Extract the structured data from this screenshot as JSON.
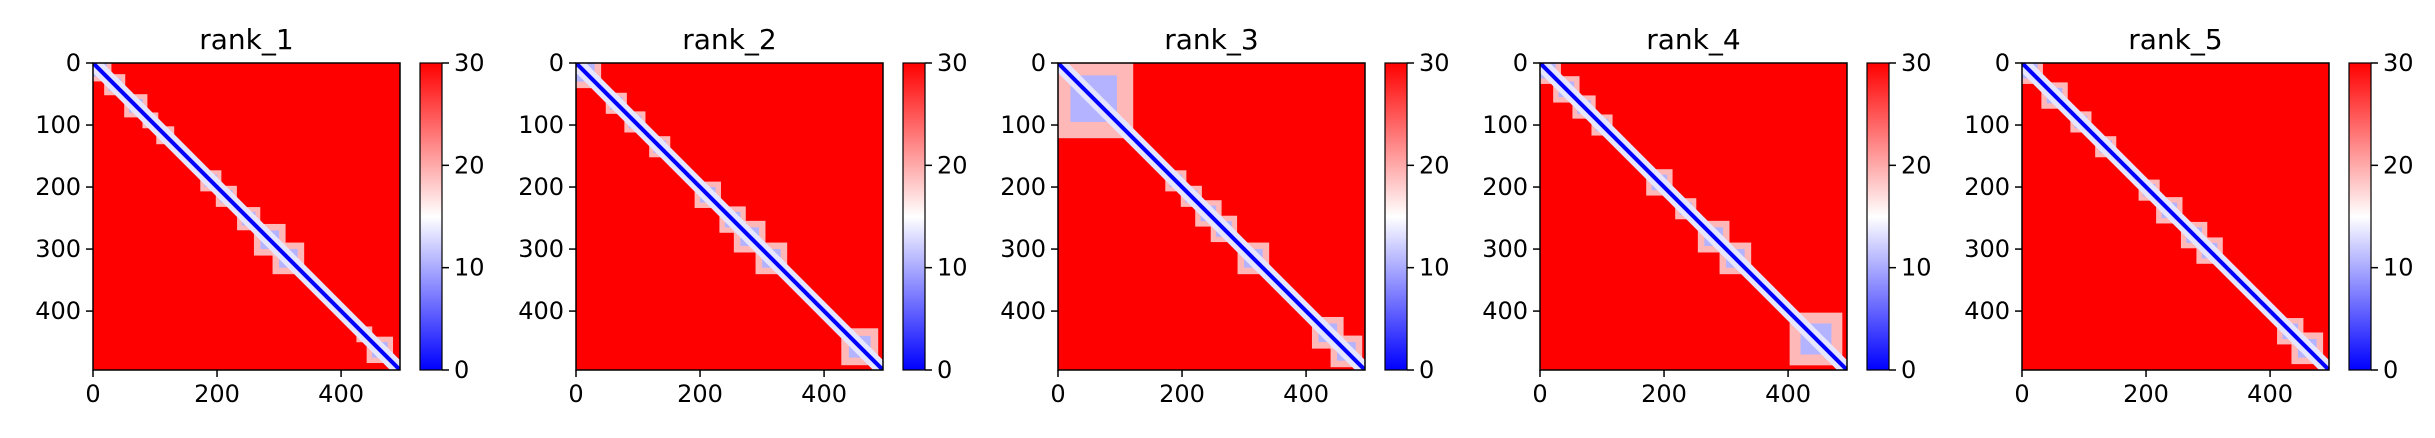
{
  "figure": {
    "colormap": {
      "name": "bwr",
      "low": "#0000ff",
      "mid": "#ffffff",
      "high": "#ff0000"
    }
  },
  "chart_data": [
    {
      "type": "heatmap",
      "title": "rank_1",
      "xlabel": "",
      "ylabel": "",
      "xlim": [
        0,
        495
      ],
      "ylim": [
        495,
        0
      ],
      "xticks": [
        0,
        200,
        400
      ],
      "yticks": [
        0,
        100,
        200,
        300,
        400
      ],
      "colorbar": {
        "range": [
          0,
          30
        ],
        "ticks": [
          0,
          10,
          20,
          30
        ]
      },
      "blue_diagonal": true,
      "low_value_domains": [
        [
          0,
          22
        ],
        [
          25,
          45
        ],
        [
          58,
          80
        ],
        [
          85,
          100
        ],
        [
          108,
          125
        ],
        [
          180,
          200
        ],
        [
          205,
          225
        ],
        [
          240,
          262
        ],
        [
          270,
          300
        ],
        [
          300,
          330
        ],
        [
          430,
          445
        ],
        [
          450,
          475
        ]
      ]
    },
    {
      "type": "heatmap",
      "title": "rank_2",
      "xlabel": "",
      "ylabel": "",
      "xlim": [
        0,
        495
      ],
      "ylim": [
        495,
        0
      ],
      "xticks": [
        0,
        200,
        400
      ],
      "yticks": [
        0,
        100,
        200,
        300,
        400
      ],
      "colorbar": {
        "range": [
          0,
          30
        ],
        "ticks": [
          0,
          10,
          20,
          30
        ]
      },
      "blue_diagonal": true,
      "low_value_domains": [
        [
          0,
          30
        ],
        [
          55,
          75
        ],
        [
          85,
          105
        ],
        [
          125,
          145
        ],
        [
          200,
          225
        ],
        [
          240,
          265
        ],
        [
          265,
          295
        ],
        [
          300,
          330
        ],
        [
          440,
          475
        ]
      ]
    },
    {
      "type": "heatmap",
      "title": "rank_3",
      "xlabel": "",
      "ylabel": "",
      "xlim": [
        0,
        495
      ],
      "ylim": [
        495,
        0
      ],
      "xticks": [
        0,
        200,
        400
      ],
      "yticks": [
        0,
        100,
        200,
        300,
        400
      ],
      "colorbar": {
        "range": [
          0,
          30
        ],
        "ticks": [
          0,
          10,
          20,
          30
        ]
      },
      "blue_diagonal": true,
      "low_value_domains": [
        [
          20,
          95
        ],
        [
          180,
          200
        ],
        [
          205,
          225
        ],
        [
          230,
          255
        ],
        [
          255,
          280
        ],
        [
          300,
          330
        ],
        [
          420,
          450
        ],
        [
          450,
          480
        ]
      ]
    },
    {
      "type": "heatmap",
      "title": "rank_4",
      "xlabel": "",
      "ylabel": "",
      "xlim": [
        0,
        495
      ],
      "ylim": [
        495,
        0
      ],
      "xticks": [
        0,
        200,
        400
      ],
      "yticks": [
        0,
        100,
        200,
        300,
        400
      ],
      "colorbar": {
        "range": [
          0,
          30
        ],
        "ticks": [
          0,
          10,
          20,
          30
        ]
      },
      "blue_diagonal": true,
      "low_value_domains": [
        [
          0,
          25
        ],
        [
          30,
          55
        ],
        [
          60,
          82
        ],
        [
          90,
          110
        ],
        [
          180,
          205
        ],
        [
          225,
          245
        ],
        [
          265,
          295
        ],
        [
          300,
          330
        ],
        [
          420,
          470
        ]
      ]
    },
    {
      "type": "heatmap",
      "title": "rank_5",
      "xlabel": "",
      "ylabel": "",
      "xlim": [
        0,
        495
      ],
      "ylim": [
        495,
        0
      ],
      "xticks": [
        0,
        200,
        400
      ],
      "yticks": [
        0,
        100,
        200,
        300,
        400
      ],
      "colorbar": {
        "range": [
          0,
          30
        ],
        "ticks": [
          0,
          10,
          20,
          30
        ]
      },
      "blue_diagonal": true,
      "low_value_domains": [
        [
          0,
          25
        ],
        [
          40,
          65
        ],
        [
          85,
          105
        ],
        [
          125,
          145
        ],
        [
          195,
          215
        ],
        [
          225,
          250
        ],
        [
          265,
          290
        ],
        [
          290,
          315
        ],
        [
          420,
          445
        ],
        [
          445,
          475
        ]
      ]
    }
  ]
}
